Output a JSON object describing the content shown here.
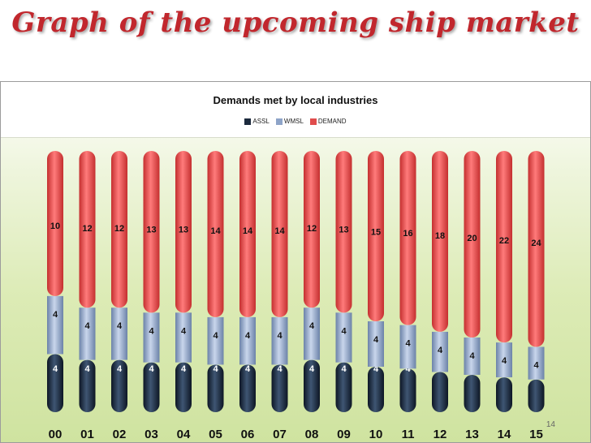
{
  "slide_title": "Graph of the upcoming ship market",
  "page_number": "14",
  "chart_data": {
    "type": "bar",
    "stacked": true,
    "title": "Demands met by local industries",
    "xlabel": "",
    "ylabel": "",
    "categories": [
      "00",
      "01",
      "02",
      "03",
      "04",
      "05",
      "06",
      "07",
      "08",
      "09",
      "10",
      "11",
      "12",
      "13",
      "14",
      "15"
    ],
    "series": [
      {
        "name": "ASSL",
        "color": "#1c2a3d",
        "values": [
          4,
          4,
          4,
          4,
          4,
          4,
          4,
          4,
          4,
          4,
          4,
          4,
          4,
          4,
          4,
          4
        ]
      },
      {
        "name": "WMSL",
        "color": "#8ea4c8",
        "values": [
          4,
          4,
          4,
          4,
          4,
          4,
          4,
          4,
          4,
          4,
          4,
          4,
          4,
          4,
          4,
          4
        ]
      },
      {
        "name": "DEMAND",
        "color": "#e04c4c",
        "values": [
          10,
          12,
          12,
          13,
          13,
          14,
          14,
          14,
          12,
          13,
          15,
          16,
          18,
          20,
          22,
          24
        ]
      }
    ],
    "legend_position": "top-center",
    "grid": false
  }
}
